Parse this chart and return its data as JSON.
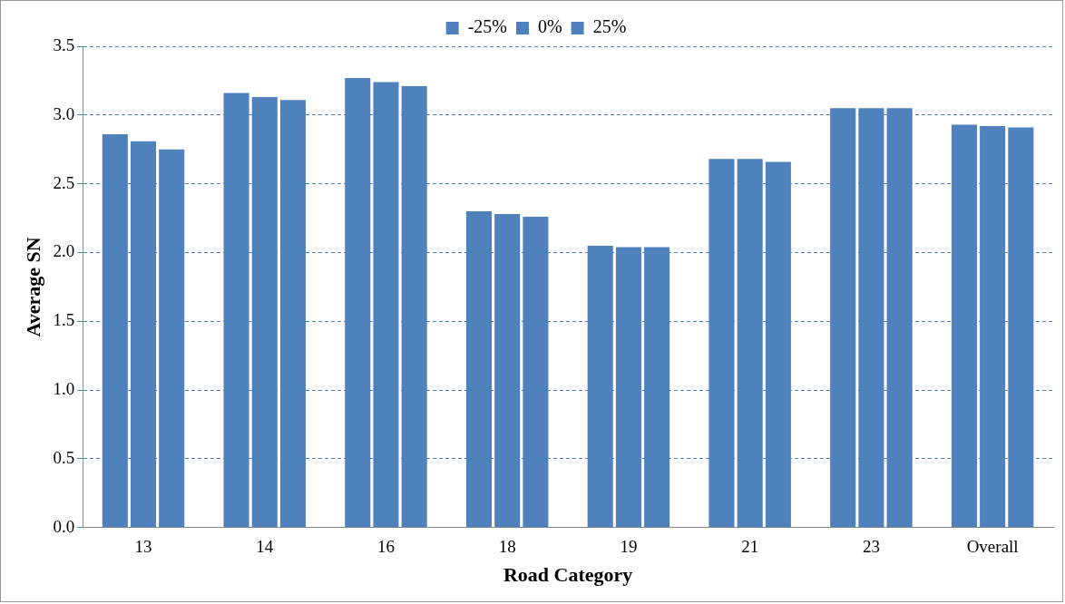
{
  "chart_data": {
    "type": "bar",
    "xlabel": "Road Category",
    "ylabel": "Average SN",
    "categories": [
      "13",
      "14",
      "16",
      "18",
      "19",
      "21",
      "23",
      "Overall"
    ],
    "series": [
      {
        "name": "-25%",
        "color": "#4f81bd",
        "values": [
          2.86,
          3.16,
          3.27,
          2.3,
          2.05,
          2.68,
          3.05,
          2.93
        ]
      },
      {
        "name": "0%",
        "color": "#4f81bd",
        "values": [
          2.81,
          3.13,
          3.24,
          2.28,
          2.04,
          2.68,
          3.05,
          2.92
        ]
      },
      {
        "name": "25%",
        "color": "#4f81bd",
        "values": [
          2.75,
          3.11,
          3.21,
          2.26,
          2.04,
          2.66,
          3.05,
          2.91
        ]
      }
    ],
    "ylim": [
      0,
      3.5
    ],
    "yticks": [
      {
        "value": 0,
        "label": "0.0"
      },
      {
        "value": 0.5,
        "label": "0.5"
      },
      {
        "value": 1,
        "label": "1.0"
      },
      {
        "value": 1.5,
        "label": "1.5"
      },
      {
        "value": 2,
        "label": "2.0"
      },
      {
        "value": 2.5,
        "label": "2.5"
      },
      {
        "value": 3,
        "label": "3.0"
      },
      {
        "value": 3.5,
        "label": "3.5"
      }
    ],
    "grid": "y",
    "legend": "top"
  }
}
